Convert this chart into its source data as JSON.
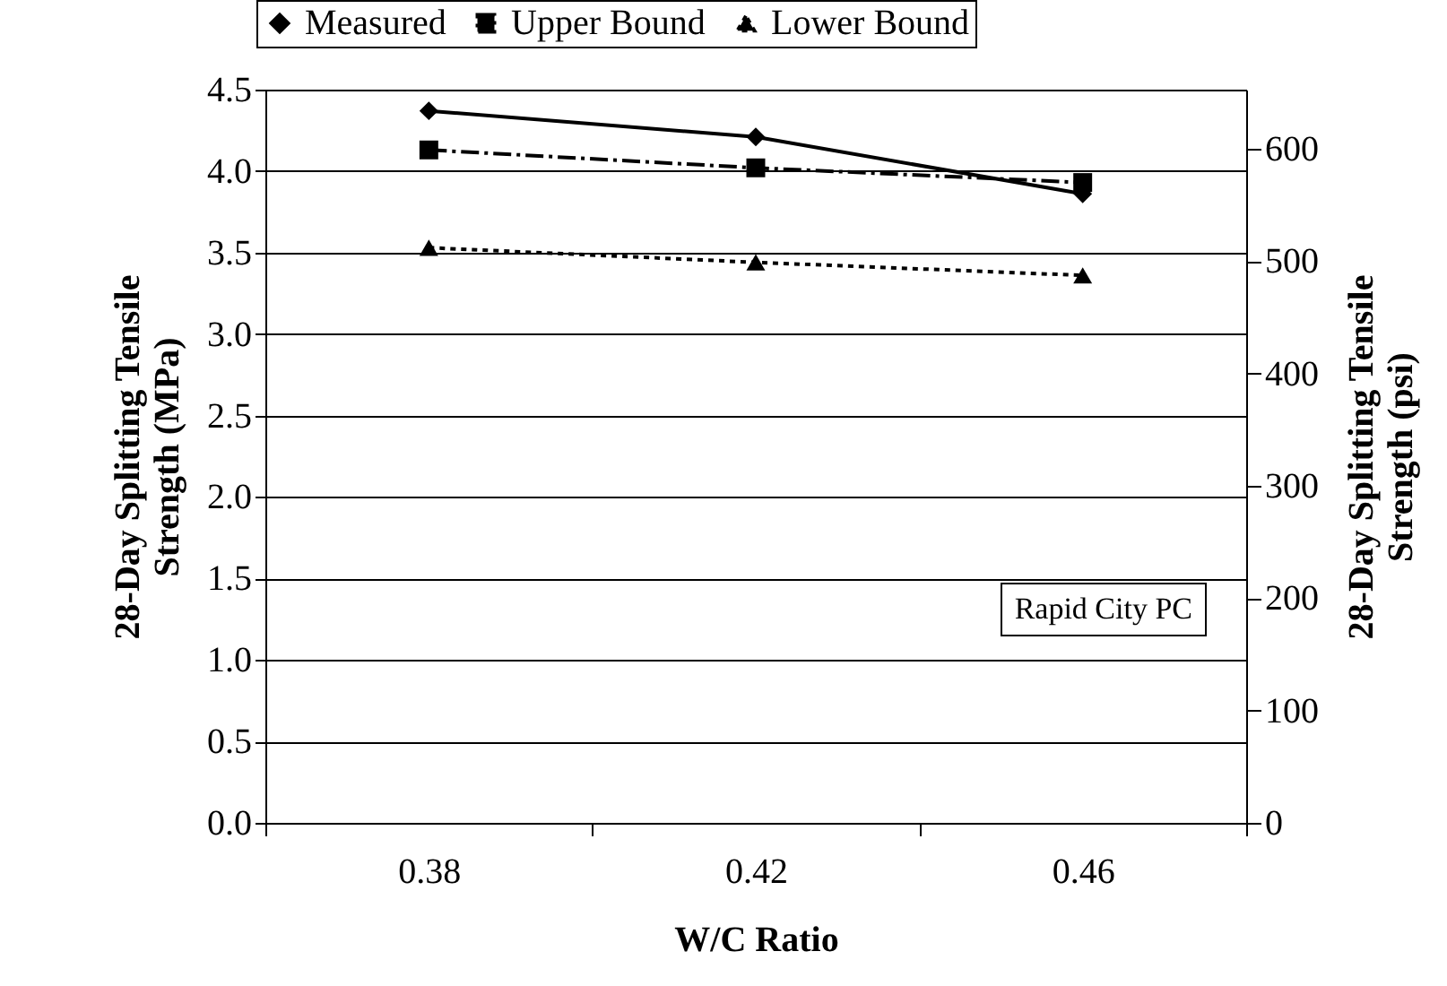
{
  "chart_data": {
    "type": "line",
    "xlabel": "W/C Ratio",
    "ylabel": "28-Day Splitting Tensile Strength (MPa)",
    "y2label": "28-Day Splitting Tensile Strength (psi)",
    "categories": [
      "0.38",
      "0.42",
      "0.46"
    ],
    "series": [
      {
        "name": "Measured",
        "color": "#000000",
        "marker": "diamond",
        "line_style": "solid",
        "values": [
          4.37,
          4.21,
          3.86
        ]
      },
      {
        "name": "Upper Bound",
        "color": "#000000",
        "marker": "square",
        "line_style": "dashed",
        "values": [
          4.13,
          4.02,
          3.93
        ]
      },
      {
        "name": "Lower Bound",
        "color": "#000000",
        "marker": "triangle",
        "line_style": "dotted",
        "values": [
          3.53,
          3.44,
          3.36
        ]
      }
    ],
    "ylim": [
      0,
      4.5
    ],
    "yticks": [
      {
        "value": 0,
        "label": "0.0"
      },
      0.5,
      {
        "value": 1,
        "label": "1.0"
      },
      1.5,
      {
        "value": 2,
        "label": "2.0"
      },
      2.5,
      {
        "value": 3,
        "label": "3.0"
      },
      3.5,
      {
        "value": 4,
        "label": "4.0"
      },
      4.5
    ],
    "y2lim": [
      0,
      652.7
    ],
    "y2ticks": [
      0,
      100,
      200,
      300,
      400,
      500,
      600
    ],
    "grid": "y",
    "legend": "top",
    "annotations": [
      "Rapid City PC"
    ]
  }
}
